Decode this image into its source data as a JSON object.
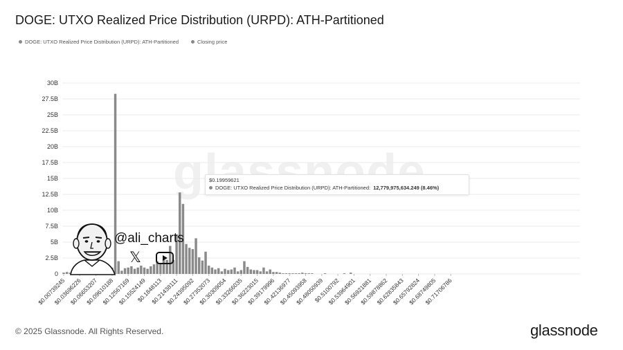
{
  "title": "DOGE: UTXO Realized Price Distribution (URPD): ATH-Partitioned",
  "legend": [
    {
      "label": "DOGE: UTXO Realized Price Distribution (URPD): ATH-Partitioned",
      "color": "#8a8a8a"
    },
    {
      "label": "Closing price",
      "color": "#8a8a8a"
    }
  ],
  "tooltip": {
    "price": "$0.19959621",
    "series": "DOGE: UTXO Realized Price Distribution (URPD): ATH-Partitioned:",
    "value": "12,779,975,634.249 (8.46%)"
  },
  "watermark": "glassnode",
  "signature": {
    "handle": "@ali_charts",
    "x_icon": "x-logo-icon",
    "youtube_icon": "youtube-icon"
  },
  "footer": {
    "copyright": "© 2025 Glassnode. All Rights Reserved.",
    "logo": "glassnode"
  },
  "colors": {
    "bar": "#8a8a8a",
    "grid": "#ebebeb",
    "text": "#333333"
  },
  "chart_data": {
    "type": "bar",
    "unit": "B",
    "ylim": [
      0,
      30
    ],
    "yticks": [
      0,
      2.5,
      5,
      7.5,
      10,
      12.5,
      15,
      17.5,
      20,
      22.5,
      25,
      27.5,
      30
    ],
    "ytick_labels": [
      "0",
      "2.5B",
      "5B",
      "7.5B",
      "10B",
      "12.5B",
      "15B",
      "17.5B",
      "20B",
      "22.5B",
      "25B",
      "27.5B",
      "30B"
    ],
    "xtick_labels": [
      "$0.00739245",
      "$0.03696226",
      "$0.06653207",
      "$0.09610188",
      "$0.12567169",
      "$0.15524149",
      "$0.1848113",
      "$0.21438111",
      "$0.24395092",
      "$0.27352073",
      "$0.30309054",
      "$0.33266035",
      "$0.36223015",
      "$0.39179996",
      "$0.42136977",
      "$0.45093958",
      "$0.48050939",
      "$0.5100792",
      "$0.53964901",
      "$0.56921881",
      "$0.59878862",
      "$0.62835843",
      "$0.65792824",
      "$0.68749805",
      "$0.71706786"
    ],
    "bins_per_tick": 5,
    "grid": true,
    "legend_position": "top-left",
    "values": [
      0.2,
      0.3,
      0.2,
      0.3,
      0.4,
      0.5,
      0.6,
      0.4,
      0.5,
      0.3,
      0.6,
      0.8,
      0.3,
      1.0,
      0.8,
      1.0,
      28.3,
      2.0,
      0.5,
      0.9,
      1.0,
      1.2,
      0.8,
      1.0,
      1.3,
      1.0,
      0.8,
      1.2,
      1.5,
      2.0,
      1.6,
      2.3,
      2.2,
      4.4,
      2.2,
      6.2,
      12.8,
      11.0,
      4.7,
      4.1,
      3.9,
      5.6,
      2.6,
      2.1,
      3.5,
      1.3,
      1.0,
      0.7,
      0.9,
      0.4,
      0.8,
      0.6,
      0.7,
      1.0,
      0.4,
      0.6,
      2.0,
      1.1,
      0.7,
      0.6,
      0.6,
      0.4,
      1.0,
      0.4,
      0.7,
      0.3,
      0.3,
      0.2,
      0.1,
      0.1,
      0.1,
      0.1,
      0.1,
      0.1,
      0.2,
      0.1,
      0.1,
      0.1,
      0.0,
      0.0,
      0.0,
      0.1,
      0.0,
      0.0,
      0.0,
      0.0,
      0.0,
      0.1,
      0.0,
      0.2,
      0.0,
      0.0,
      0.0,
      0.0,
      0.0,
      0.0,
      0.0,
      0.0,
      0.0,
      0.0,
      0.0,
      0.0,
      0.0,
      0.0,
      0.0,
      0.0,
      0.0,
      0.0,
      0.0,
      0.0,
      0.0,
      0.0,
      0.0,
      0.0,
      0.0,
      0.0,
      0.0,
      0.0,
      0.0,
      0.0,
      0.0,
      0.0
    ]
  }
}
